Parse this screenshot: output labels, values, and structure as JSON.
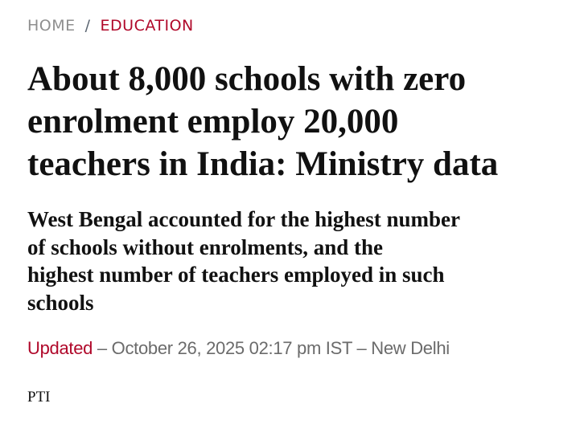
{
  "breadcrumb": {
    "home": "HOME",
    "separator": "/",
    "category": "EDUCATION"
  },
  "headline": {
    "lines": [
      "About 8,000 schools with zero",
      "enrolment employ 20,000",
      "teachers in India: Ministry data"
    ]
  },
  "subtitle": {
    "lines": [
      "West Bengal accounted for the highest number",
      "of schools without enrolments, and the",
      "highest number of teachers employed in such",
      "schools"
    ]
  },
  "meta": {
    "updated_label": "Updated",
    "details": " – October 26, 2025 02:17 pm IST – New Delhi"
  },
  "author": "PTI",
  "colors": {
    "accent": "#b0082a",
    "text": "#111111",
    "muted": "#6b6b6b"
  }
}
